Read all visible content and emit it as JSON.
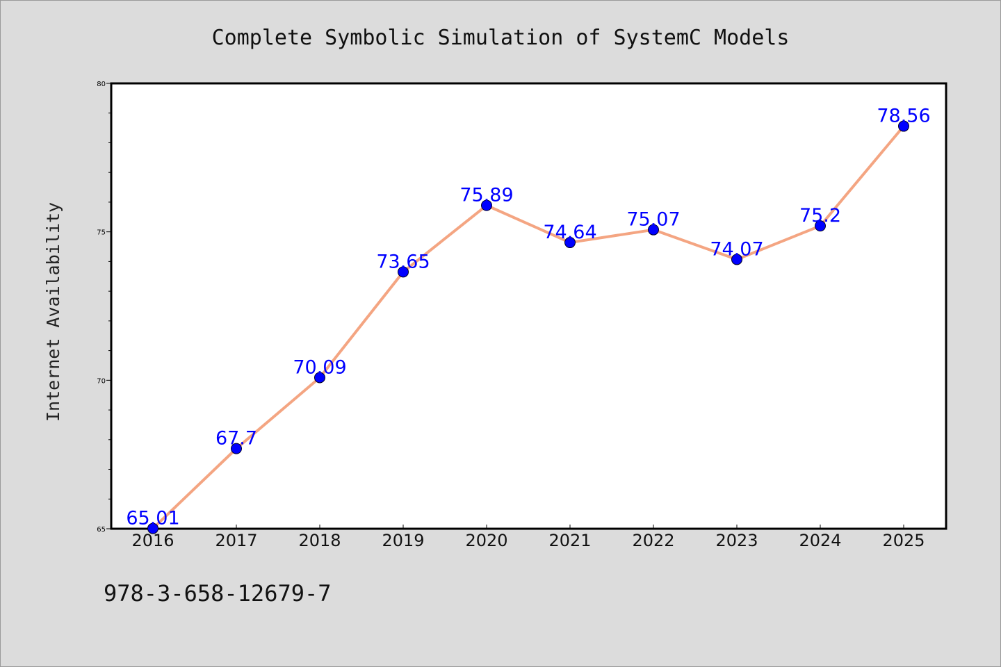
{
  "chart_data": {
    "type": "line",
    "title": "Complete Symbolic Simulation of SystemC Models",
    "xlabel": "",
    "ylabel": "Internet Availability",
    "categories": [
      "2016",
      "2017",
      "2018",
      "2019",
      "2020",
      "2021",
      "2022",
      "2023",
      "2024",
      "2025"
    ],
    "series": [
      {
        "values": [
          65.01,
          67.7,
          70.09,
          73.65,
          75.89,
          74.64,
          75.07,
          74.07,
          75.2,
          78.56
        ],
        "labels": [
          "65.01",
          "67.7",
          "70.09",
          "73.65",
          "75.89",
          "74.64",
          "75.07",
          "74.07",
          "75.2",
          "78.56"
        ],
        "line_color": "#f4a582",
        "marker_color": "#0000ff"
      }
    ],
    "ylim": [
      65,
      80
    ],
    "yticks": [
      "65",
      "70",
      "75",
      "80"
    ],
    "grid": false,
    "legend": "none"
  },
  "footer_text": "978-3-658-12679-7",
  "colors": {
    "background": "#dcdcdc",
    "plot_background": "#ffffff",
    "line": "#f4a582",
    "marker": "#0000ff",
    "data_label": "#0000ff"
  }
}
